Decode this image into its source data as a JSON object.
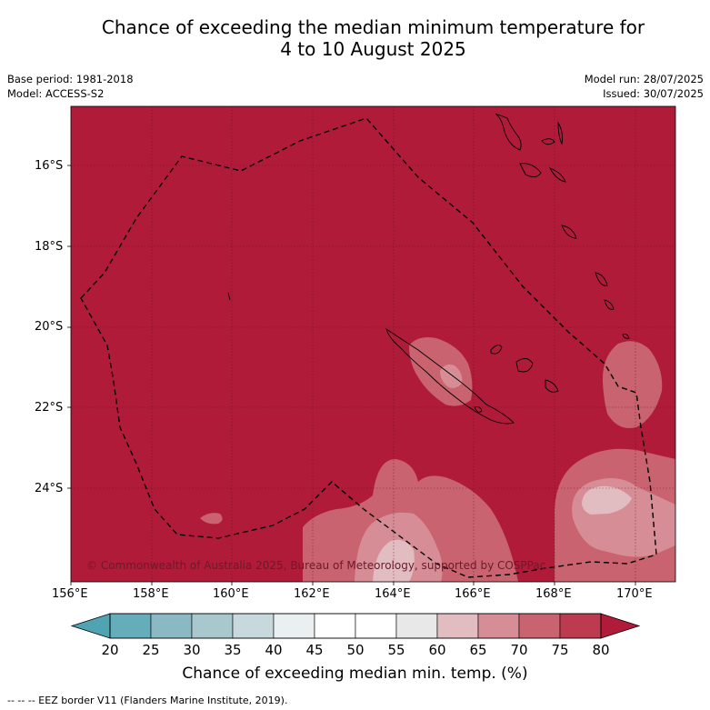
{
  "title_line1": "Chance of exceeding the median minimum temperature for",
  "title_line2": "4 to 10 August 2025",
  "base_period": "Base period: 1981-2018",
  "model": "Model: ACCESS-S2",
  "model_run": "Model run: 28/07/2025",
  "issued": "Issued: 30/07/2025",
  "copyright": "© Commonwealth of Australia 2025, Bureau of Meteorology, supported by COSPPac",
  "lat_labels": [
    "16°S",
    "18°S",
    "20°S",
    "22°S",
    "24°S"
  ],
  "lon_labels": [
    "156°E",
    "158°E",
    "160°E",
    "162°E",
    "164°E",
    "166°E",
    "168°E",
    "170°E"
  ],
  "colorbar": {
    "ticks": [
      "20",
      "25",
      "30",
      "35",
      "40",
      "45",
      "50",
      "55",
      "60",
      "65",
      "70",
      "75",
      "80"
    ],
    "colors": [
      "#66adbb",
      "#8ab8c3",
      "#a9c8cd",
      "#c8d9dd",
      "#eaf0f2",
      "#ffffff",
      "#ffffff",
      "#e8e8e8",
      "#e1bcc0",
      "#d68d95",
      "#c9636f",
      "#bc3b4e"
    ],
    "under_color": "#4fa3b3",
    "over_color": "#b01b3a",
    "label": "Chance of exceeding median min. temp. (%)"
  },
  "colors": {
    "background_field": "#b01b3a",
    "field_70_75": "#c9636f",
    "field_75_80": "#bc3b4e",
    "field_65_70": "#d68d95"
  },
  "legend_note": "--  --  -- EEZ border V11 (Flanders Marine Institute, 2019)."
}
